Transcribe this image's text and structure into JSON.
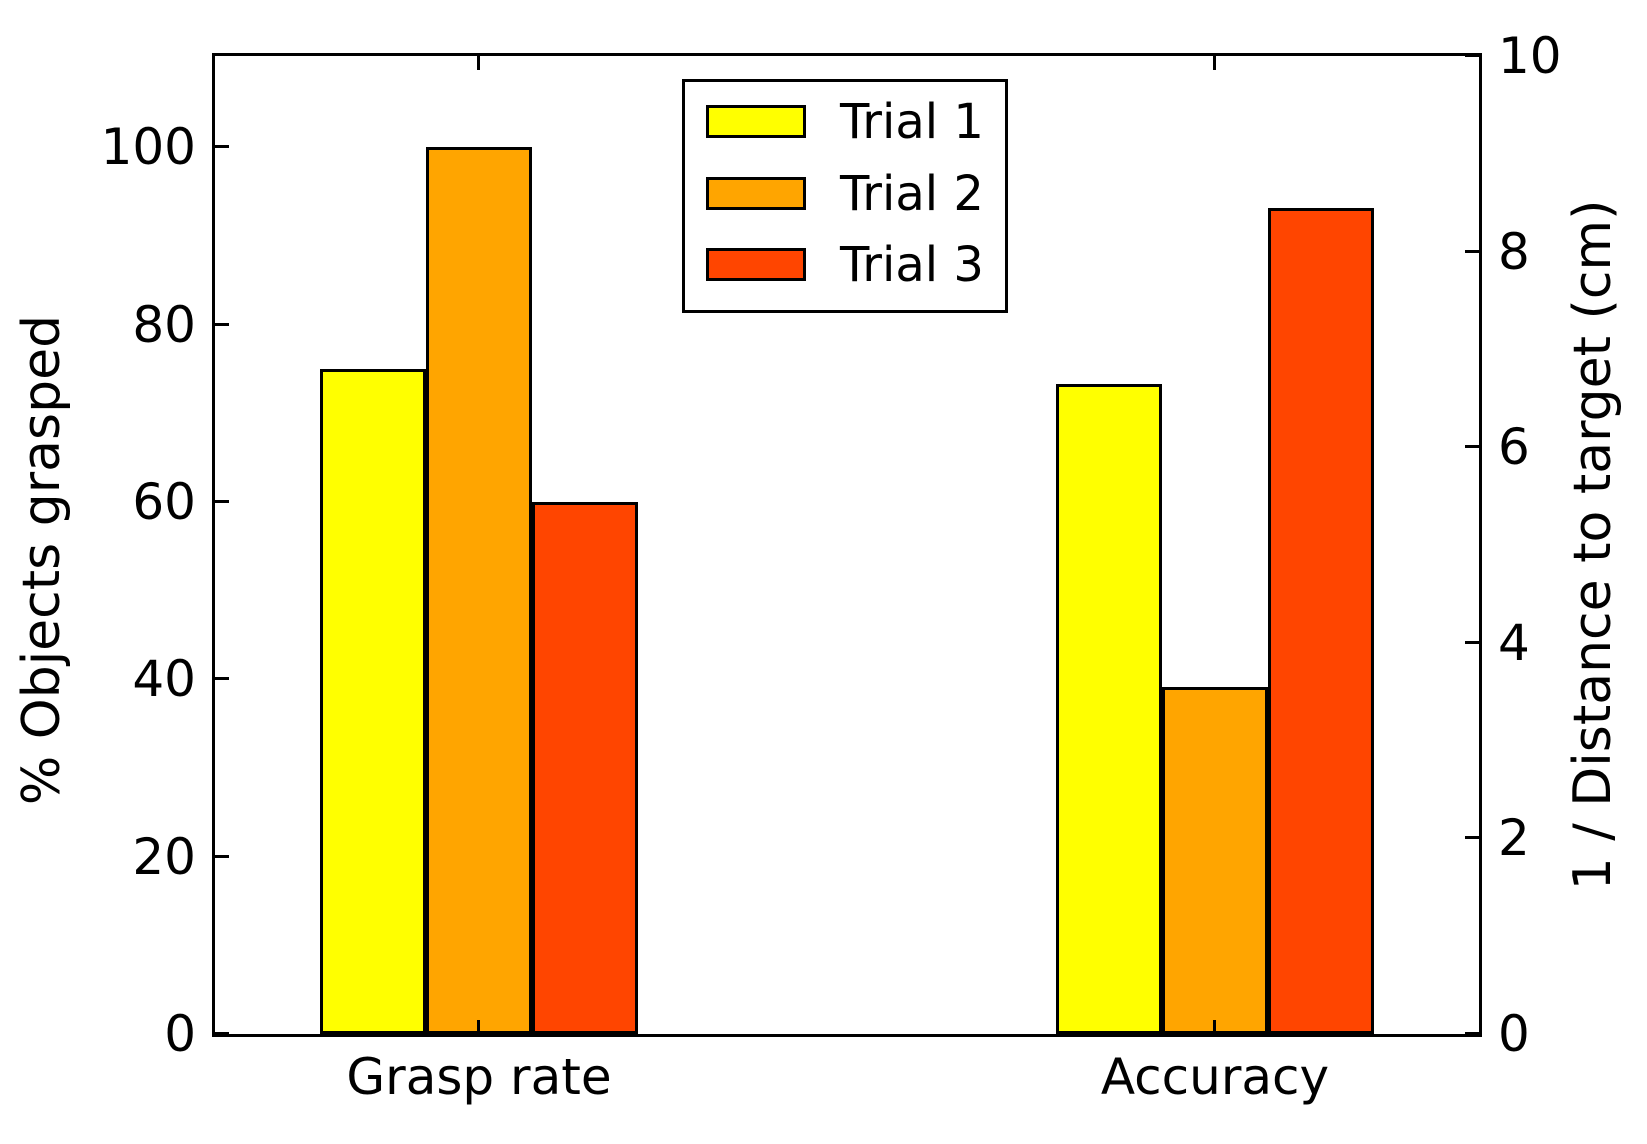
{
  "chart_data": {
    "type": "bar",
    "title": "",
    "categories": [
      "Grasp rate",
      "Accuracy"
    ],
    "category_axis": [
      "left",
      "right"
    ],
    "series": [
      {
        "name": "Trial 1",
        "color": "#ffff00",
        "values": [
          75,
          6.65
        ]
      },
      {
        "name": "Trial 2",
        "color": "#ffa500",
        "values": [
          100,
          3.55
        ]
      },
      {
        "name": "Trial 3",
        "color": "#ff4500",
        "values": [
          60,
          8.45
        ]
      }
    ],
    "left_axis": {
      "label": "% Objects grasped",
      "ticks": [
        0,
        20,
        40,
        60,
        80,
        100
      ],
      "ylim": [
        0,
        110.3
      ]
    },
    "right_axis": {
      "label": "1 / Distance to target (cm)",
      "ticks": [
        0,
        2,
        4,
        6,
        8,
        10
      ],
      "ylim": [
        0,
        10
      ]
    },
    "legend": {
      "position": "upper center",
      "labels": [
        "Trial 1",
        "Trial 2",
        "Trial 3"
      ]
    },
    "grid": false,
    "bar_edge_color": "#000000",
    "background_color": "#ffffff",
    "text_color": "#000000"
  }
}
